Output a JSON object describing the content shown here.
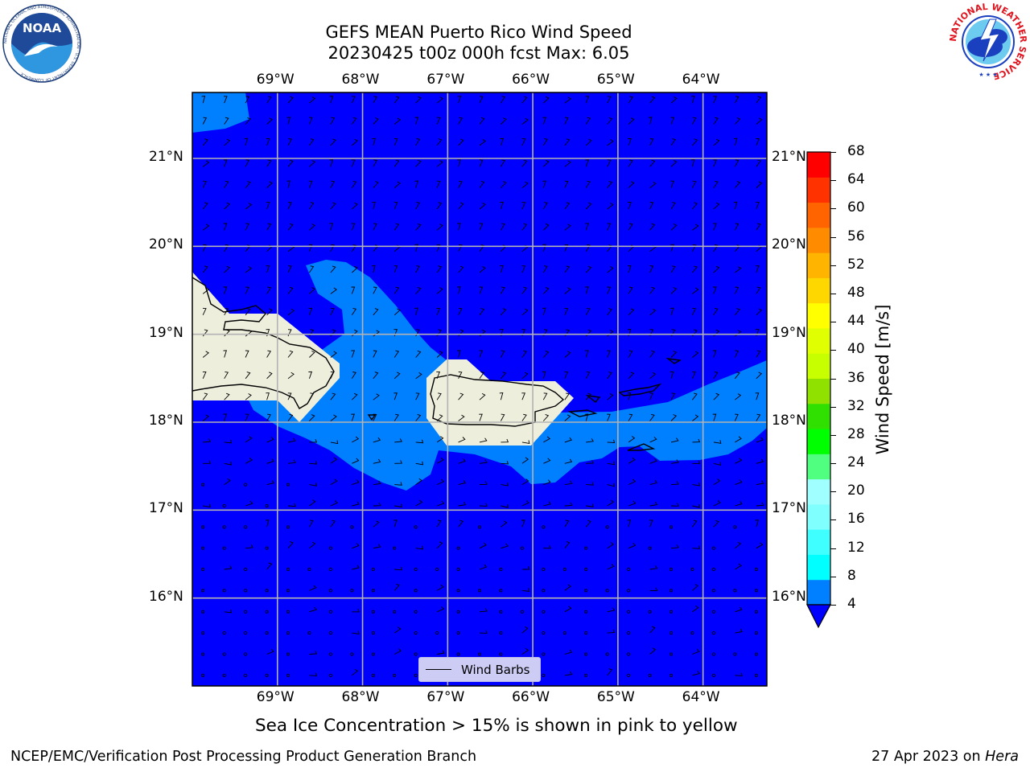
{
  "header": {
    "title_line1": "GEFS MEAN Puerto Rico Wind Speed",
    "title_line2": "20230425 t00z 000h fcst   Max: 6.05"
  },
  "logos": {
    "noaa_text": "NOAA",
    "noaa_ring_text": "NATIONAL OCEANIC AND ATMOSPHERIC ADMINISTRATION · U.S. DEPARTMENT OF COMMERCE",
    "nws_ring_text": "NATIONAL WEATHER SERVICE"
  },
  "map": {
    "lon_labels": [
      "69°W",
      "68°W",
      "67°W",
      "66°W",
      "65°W",
      "64°W"
    ],
    "lat_labels": [
      "21°N",
      "20°N",
      "19°N",
      "18°N",
      "17°N",
      "16°N"
    ],
    "lon_values": [
      -69,
      -68,
      -67,
      -66,
      -65,
      -64
    ],
    "lat_values": [
      21,
      20,
      19,
      18,
      17,
      16
    ],
    "extent": {
      "lon_min": -70.0,
      "lon_max": -63.25,
      "lat_min": 15.0,
      "lat_max": 21.75
    },
    "legend_label": "Wind Barbs",
    "colors": {
      "ocean_low": "#0000ff",
      "ocean_mid": "#0080ff",
      "land": "#eeeedd",
      "grid": "#b3b3b3"
    }
  },
  "colorbar": {
    "label": "Wind Speed [m/s]",
    "ticks": [
      "68",
      "64",
      "60",
      "56",
      "52",
      "48",
      "44",
      "40",
      "36",
      "32",
      "28",
      "24",
      "20",
      "16",
      "12",
      "8",
      "4"
    ],
    "colors": [
      "#0000ff",
      "#0080ff",
      "#00ffff",
      "#40ffff",
      "#80ffff",
      "#a0ffff",
      "#50ff80",
      "#00ff00",
      "#30e000",
      "#90e000",
      "#c8ff00",
      "#e0ff00",
      "#ffff00",
      "#ffd700",
      "#ffb400",
      "#ff8c00",
      "#ff6400",
      "#ff3200",
      "#ff0000"
    ]
  },
  "subtitle": "Sea Ice Concentration > 15% is shown in pink to yellow",
  "footer": {
    "left": "NCEP/EMC/Verification Post Processing Product Generation Branch",
    "right_date": "27 Apr 2023 on ",
    "right_machine": "Hera"
  }
}
